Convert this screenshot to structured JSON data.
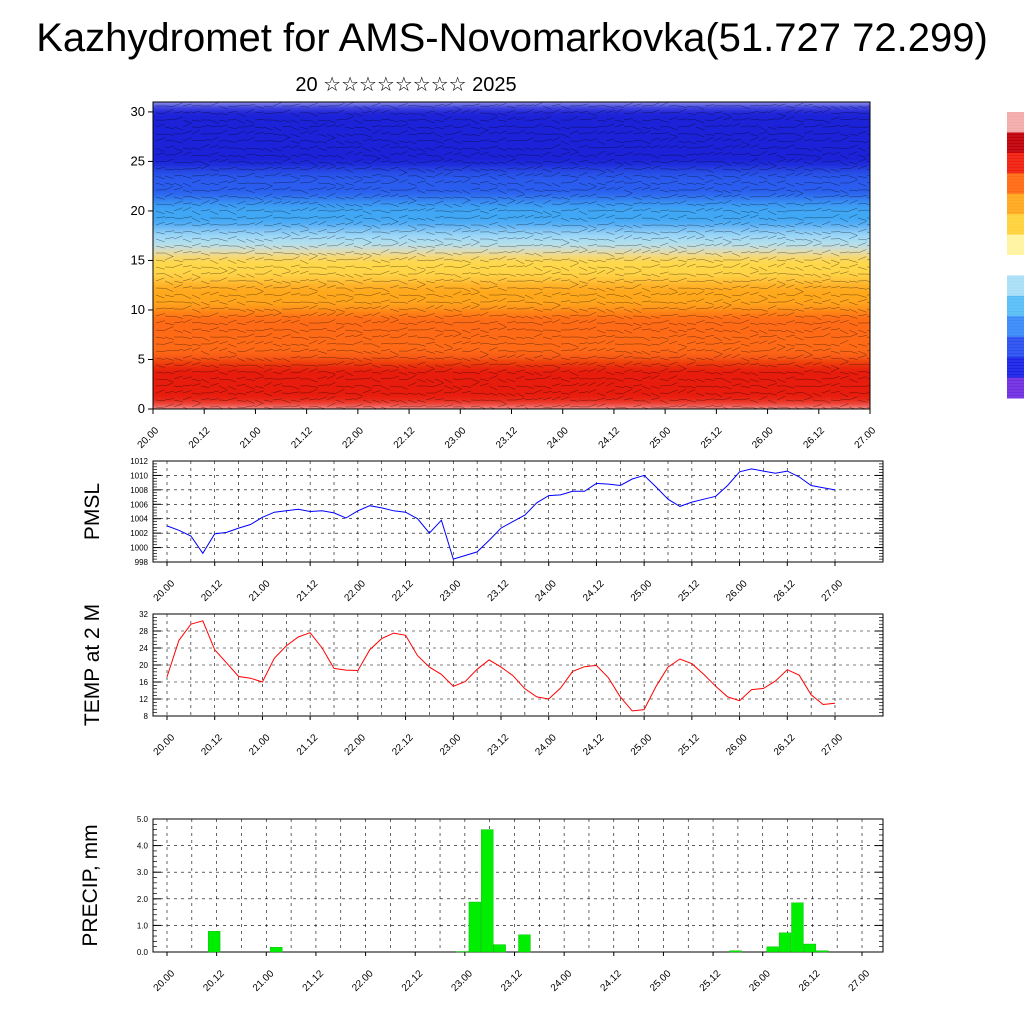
{
  "header": {
    "title": "Kazhydromet for AMS-Novomarkovka(51.727 72.299)",
    "subtitle": "20 ☆☆☆☆☆☆☆☆ 2025"
  },
  "colorbar": {
    "colors": [
      "#6f2fe0",
      "#1a22e6",
      "#2a50f0",
      "#3a8af7",
      "#58bdf5",
      "#a8dff7",
      "#ffffff",
      "#fff4a0",
      "#ffd23a",
      "#ffa81e",
      "#ff6a14",
      "#f01f0f",
      "#c00008",
      "#f3aaaa"
    ]
  },
  "chart_data": [
    {
      "type": "heatmap",
      "name": "cross-section",
      "x_ticks": [
        "20.00",
        "20.12",
        "21.00",
        "21.12",
        "22.00",
        "22.12",
        "23.00",
        "23.12",
        "24.00",
        "24.12",
        "25.00",
        "25.12",
        "26.00",
        "26.12",
        "27.00"
      ],
      "y_ticks": [
        0,
        5,
        10,
        15,
        20,
        25,
        30
      ],
      "ylim": [
        0,
        31
      ],
      "bands": [
        {
          "from": 0,
          "to": 5,
          "color": "#e81a0c"
        },
        {
          "from": 5,
          "to": 10,
          "color": "#ff6a14"
        },
        {
          "from": 10,
          "to": 13,
          "color": "#ffa81e"
        },
        {
          "from": 13,
          "to": 16,
          "color": "#ffd84a"
        },
        {
          "from": 16,
          "to": 18,
          "color": "#a8dff7"
        },
        {
          "from": 18,
          "to": 21,
          "color": "#3fa7f5"
        },
        {
          "from": 21,
          "to": 24,
          "color": "#2a5cef"
        },
        {
          "from": 24,
          "to": 31,
          "color": "#1a22d8"
        }
      ]
    },
    {
      "type": "line",
      "ylabel": "PMSL",
      "ylim": [
        998,
        1012
      ],
      "y_ticks": [
        998,
        1000,
        1002,
        1004,
        1006,
        1008,
        1010,
        1012
      ],
      "x_ticks": [
        "20.00",
        "20.12",
        "21.00",
        "21.12",
        "22.00",
        "22.12",
        "23.00",
        "23.12",
        "24.00",
        "24.12",
        "25.00",
        "25.12",
        "26.00",
        "26.12",
        "27.00"
      ],
      "color": "#0000ff",
      "x": [
        0,
        3,
        6,
        9,
        12,
        15,
        18,
        21,
        24,
        27,
        30,
        33,
        36,
        39,
        42,
        45,
        48,
        51,
        54,
        57,
        60,
        63,
        66,
        69,
        72,
        75,
        78,
        81,
        84,
        87,
        90,
        93,
        96,
        99,
        102,
        105,
        108,
        111,
        114,
        117,
        120,
        123,
        126,
        129,
        132,
        135,
        138,
        141,
        144,
        147,
        150,
        153,
        156,
        159,
        162,
        165,
        168
      ],
      "values": [
        1003.0,
        1002.4,
        1001.6,
        999.2,
        1001.9,
        1002.1,
        1002.7,
        1003.2,
        1004.2,
        1004.9,
        1005.1,
        1005.3,
        1005.0,
        1005.1,
        1004.8,
        1004.1,
        1005.1,
        1005.8,
        1005.5,
        1005.1,
        1004.9,
        1004.0,
        1002.0,
        1003.8,
        998.4,
        998.9,
        999.4,
        1001.0,
        1002.7,
        1003.6,
        1004.5,
        1006.2,
        1007.2,
        1007.3,
        1007.8,
        1007.8,
        1008.9,
        1008.8,
        1008.6,
        1009.5,
        1010.0,
        1008.4,
        1006.7,
        1005.7,
        1006.3,
        1006.7,
        1007.1,
        1008.6,
        1010.5,
        1010.9,
        1010.6,
        1010.3,
        1010.6,
        1009.8,
        1008.6,
        1008.3,
        1008.0
      ]
    },
    {
      "type": "line",
      "ylabel": "TEMP at 2 M",
      "ylim": [
        8,
        32
      ],
      "y_ticks": [
        8,
        12,
        16,
        20,
        24,
        28,
        32
      ],
      "x_ticks": [
        "20.00",
        "20.12",
        "21.00",
        "21.12",
        "22.00",
        "22.12",
        "23.00",
        "23.12",
        "24.00",
        "24.12",
        "25.00",
        "25.12",
        "26.00",
        "26.12",
        "27.00"
      ],
      "color": "#ff0000",
      "x": [
        0,
        3,
        6,
        9,
        12,
        15,
        18,
        21,
        24,
        27,
        30,
        33,
        36,
        39,
        42,
        45,
        48,
        51,
        54,
        57,
        60,
        63,
        66,
        69,
        72,
        75,
        78,
        81,
        84,
        87,
        90,
        93,
        96,
        99,
        102,
        105,
        108,
        111,
        114,
        117,
        120,
        123,
        126,
        129,
        132,
        135,
        138,
        141,
        144,
        147,
        150,
        153,
        156,
        159,
        162,
        165,
        168
      ],
      "values": [
        17.2,
        25.8,
        29.6,
        30.4,
        23.6,
        20.5,
        17.3,
        16.9,
        16.0,
        21.6,
        24.5,
        26.6,
        27.6,
        24.0,
        19.2,
        18.8,
        18.7,
        23.6,
        26.2,
        27.5,
        27.0,
        22.2,
        19.5,
        17.8,
        15.0,
        16.1,
        19.0,
        21.2,
        19.5,
        17.5,
        14.4,
        12.5,
        12.0,
        14.6,
        18.5,
        19.6,
        19.9,
        17.0,
        12.5,
        9.2,
        9.5,
        15.0,
        19.5,
        21.4,
        20.3,
        17.8,
        15.0,
        12.5,
        11.6,
        14.2,
        14.5,
        16.2,
        18.9,
        17.6,
        13.0,
        10.7,
        11.0
      ]
    },
    {
      "type": "bar",
      "ylabel": "PRECIP, mm",
      "ylim": [
        0,
        5
      ],
      "y_ticks": [
        "0.0",
        "1.0",
        "2.0",
        "3.0",
        "4.0",
        "5.0"
      ],
      "x_ticks": [
        "20.00",
        "20.12",
        "21.00",
        "21.12",
        "22.00",
        "22.12",
        "23.00",
        "23.12",
        "24.00",
        "24.12",
        "25.00",
        "25.12",
        "26.00",
        "26.12",
        "27.00"
      ],
      "color": "#00ee00",
      "bars": [
        {
          "x": 9,
          "value": 0.78
        },
        {
          "x": 24,
          "value": 0.18
        },
        {
          "x": 69,
          "value": 0.02
        },
        {
          "x": 72,
          "value": 1.88
        },
        {
          "x": 75,
          "value": 4.6
        },
        {
          "x": 78,
          "value": 0.28
        },
        {
          "x": 84,
          "value": 0.65
        },
        {
          "x": 135,
          "value": 0.05
        },
        {
          "x": 144,
          "value": 0.2
        },
        {
          "x": 147,
          "value": 0.72
        },
        {
          "x": 150,
          "value": 1.85
        },
        {
          "x": 153,
          "value": 0.3
        },
        {
          "x": 156,
          "value": 0.05
        }
      ]
    }
  ]
}
